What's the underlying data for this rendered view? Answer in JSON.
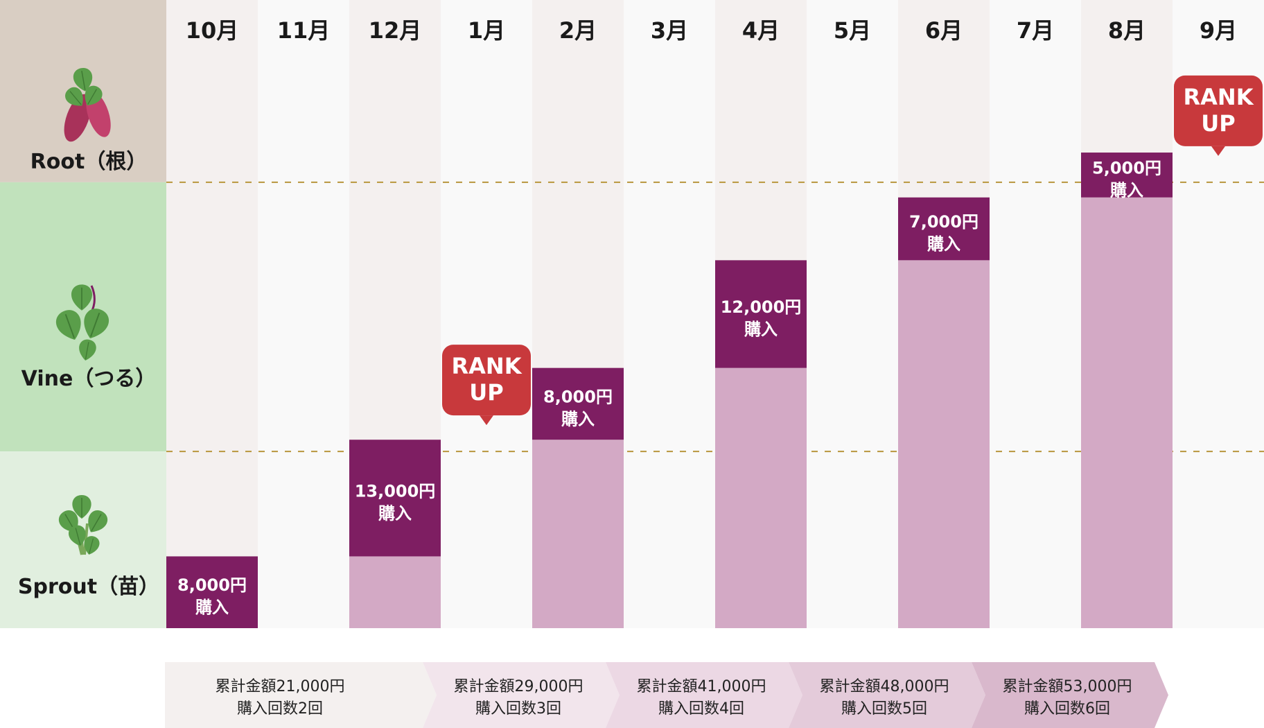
{
  "stage_labels": [
    {
      "name": "Root（根）",
      "key": "root"
    },
    {
      "name": "Vine（つる）",
      "key": "vine"
    },
    {
      "name": "Sprout（苗）",
      "key": "sprout"
    }
  ],
  "colors": {
    "root_band": "#d9cec3",
    "vine_band": "#c1e2bc",
    "sprout_band": "#e1efdf",
    "col_odd": "#f4f0ef",
    "col_even": "#f9f9f9",
    "bar_fill": "#d3a9c5",
    "purchase_fill": "#7e1e62",
    "rank_badge": "#c8393c",
    "threshold_line": "#b8963d",
    "summary_fills": [
      "#f4f0ef",
      "#f2e5ec",
      "#ecd8e4",
      "#e4cbda",
      "#d9b8cc"
    ],
    "leaf": "#5a9e4a",
    "potato": "#a8325a"
  },
  "rank_label": "RANK\nUP",
  "summaries": [
    {
      "line1": "累計金額21,000円",
      "line2": "購入回数2回"
    },
    {
      "line1": "累計金額29,000円",
      "line2": "購入回数3回"
    },
    {
      "line1": "累計金額41,000円",
      "line2": "購入回数4回"
    },
    {
      "line1": "累計金額48,000円",
      "line2": "購入回数5回"
    },
    {
      "line1": "累計金額53,000円",
      "line2": "購入回数6回"
    }
  ],
  "chart_data": {
    "type": "bar",
    "categories": [
      "10月",
      "11月",
      "12月",
      "1月",
      "2月",
      "3月",
      "4月",
      "5月",
      "6月",
      "7月",
      "8月",
      "9月"
    ],
    "series": [
      {
        "name": "cumulative_before",
        "values": [
          0,
          null,
          8000,
          null,
          21000,
          null,
          29000,
          null,
          41000,
          null,
          48000,
          null
        ]
      },
      {
        "name": "purchase",
        "values": [
          8000,
          null,
          13000,
          null,
          8000,
          null,
          12000,
          null,
          7000,
          null,
          5000,
          null
        ]
      }
    ],
    "purchase_labels": [
      {
        "month_index": 0,
        "line1": "8,000円",
        "line2": "購入"
      },
      {
        "month_index": 2,
        "line1": "13,000円",
        "line2": "購入"
      },
      {
        "month_index": 4,
        "line1": "8,000円",
        "line2": "購入"
      },
      {
        "month_index": 6,
        "line1": "12,000円",
        "line2": "購入"
      },
      {
        "month_index": 8,
        "line1": "7,000円",
        "line2": "購入"
      },
      {
        "month_index": 10,
        "line1": "5,000円",
        "line2": "購入"
      }
    ],
    "rank_up_months": [
      3,
      11
    ],
    "stage_thresholds": [
      {
        "stage": "Sprout（苗）",
        "from": 0,
        "to": 20000
      },
      {
        "stage": "Vine（つる）",
        "from": 20000,
        "to": 50000
      },
      {
        "stage": "Root（根）",
        "from": 50000,
        "to": 70000
      }
    ],
    "ylim": [
      0,
      70000
    ],
    "title": "",
    "xlabel": "",
    "ylabel": ""
  }
}
